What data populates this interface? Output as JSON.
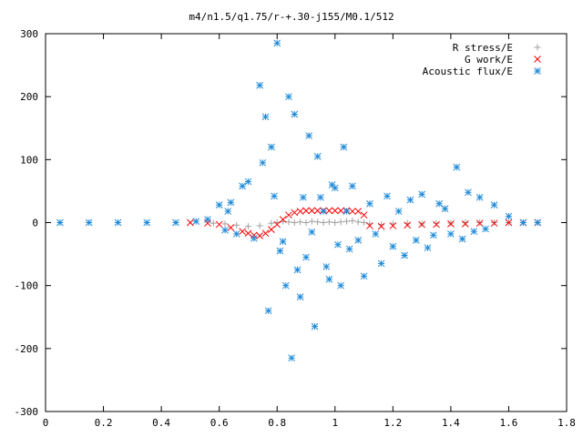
{
  "chart_data": {
    "type": "scatter",
    "title": "m4/n1.5/q1.75/r-+.30-j155/M0.1/512",
    "xlabel": "",
    "ylabel": "",
    "xlim": [
      0,
      1.8
    ],
    "ylim": [
      -300,
      300
    ],
    "x_ticks": [
      0,
      0.2,
      0.4,
      0.6,
      0.8,
      1,
      1.2,
      1.4,
      1.6,
      1.8
    ],
    "x_tick_labels": [
      "0",
      "0.2",
      "0.4",
      "0.6",
      "0.8",
      "1",
      "1.2",
      "1.4",
      "1.6",
      "1.8"
    ],
    "y_ticks": [
      -300,
      -200,
      -100,
      0,
      100,
      200,
      300
    ],
    "y_tick_labels": [
      "-300",
      "-200",
      "-100",
      "0",
      "100",
      "200",
      "300"
    ],
    "grid": false,
    "legend_position": "top-right",
    "series": [
      {
        "name": "R stress/E",
        "marker": "plus",
        "color": "#a0a0a0",
        "x": [
          0.58,
          0.62,
          0.66,
          0.7,
          0.74,
          0.78,
          0.8,
          0.82,
          0.84,
          0.86,
          0.88,
          0.9,
          0.92,
          0.94,
          0.96,
          0.98,
          1.0,
          1.02,
          1.04,
          1.06,
          1.08,
          1.1,
          1.12,
          1.16,
          1.2,
          1.25,
          1.3,
          1.35,
          1.4,
          1.45,
          1.5,
          1.55,
          1.6,
          1.65,
          1.7
        ],
        "y": [
          -1,
          -2,
          -4,
          -6,
          -5,
          -1,
          0,
          2,
          1,
          0,
          1,
          0,
          2,
          1,
          0,
          1,
          0,
          1,
          2,
          3,
          1,
          0,
          -2,
          -3,
          -2,
          -1,
          -2,
          -1,
          -1,
          0,
          0,
          0,
          0,
          0,
          0
        ]
      },
      {
        "name": "G work/E",
        "marker": "cross",
        "color": "#ff0000",
        "x": [
          0.5,
          0.56,
          0.6,
          0.64,
          0.68,
          0.7,
          0.72,
          0.74,
          0.76,
          0.78,
          0.8,
          0.82,
          0.84,
          0.86,
          0.88,
          0.9,
          0.92,
          0.94,
          0.96,
          0.98,
          1.0,
          1.02,
          1.04,
          1.06,
          1.08,
          1.1,
          1.12,
          1.16,
          1.2,
          1.25,
          1.3,
          1.35,
          1.4,
          1.45,
          1.5,
          1.55,
          1.6,
          1.65,
          1.7
        ],
        "y": [
          0,
          -1,
          -3,
          -8,
          -14,
          -17,
          -20,
          -21,
          -17,
          -11,
          -3,
          5,
          12,
          16,
          18,
          19,
          19,
          19,
          19,
          19,
          19,
          19,
          19,
          18,
          18,
          12,
          -5,
          -6,
          -5,
          -4,
          -3,
          -3,
          -2,
          -2,
          -1,
          -1,
          0,
          0,
          0
        ]
      },
      {
        "name": "Acoustic flux/E",
        "marker": "star",
        "color": "#1e8ad8",
        "x": [
          0.05,
          0.15,
          0.25,
          0.35,
          0.45,
          0.52,
          0.56,
          0.6,
          0.62,
          0.63,
          0.64,
          0.66,
          0.68,
          0.7,
          0.72,
          0.74,
          0.75,
          0.76,
          0.77,
          0.78,
          0.79,
          0.8,
          0.81,
          0.82,
          0.83,
          0.84,
          0.85,
          0.86,
          0.87,
          0.88,
          0.89,
          0.9,
          0.91,
          0.92,
          0.93,
          0.94,
          0.95,
          0.96,
          0.97,
          0.98,
          0.99,
          1.0,
          1.01,
          1.02,
          1.03,
          1.04,
          1.05,
          1.06,
          1.08,
          1.1,
          1.12,
          1.14,
          1.16,
          1.18,
          1.2,
          1.22,
          1.24,
          1.26,
          1.28,
          1.3,
          1.32,
          1.34,
          1.36,
          1.38,
          1.4,
          1.42,
          1.44,
          1.46,
          1.48,
          1.5,
          1.52,
          1.55,
          1.6,
          1.65,
          1.7
        ],
        "y": [
          0,
          0,
          0,
          0,
          0,
          2,
          5,
          28,
          -12,
          18,
          32,
          -18,
          58,
          65,
          -25,
          218,
          95,
          168,
          -140,
          120,
          42,
          285,
          -45,
          -30,
          -100,
          200,
          -215,
          172,
          -75,
          -118,
          40,
          -55,
          138,
          -15,
          -165,
          105,
          40,
          18,
          -70,
          -90,
          60,
          55,
          -35,
          -100,
          120,
          18,
          -42,
          58,
          -28,
          -85,
          30,
          -18,
          -65,
          42,
          -38,
          18,
          -52,
          36,
          -28,
          45,
          -40,
          -20,
          30,
          22,
          -18,
          88,
          -26,
          48,
          -14,
          40,
          -10,
          28,
          10,
          0,
          0
        ]
      }
    ]
  }
}
